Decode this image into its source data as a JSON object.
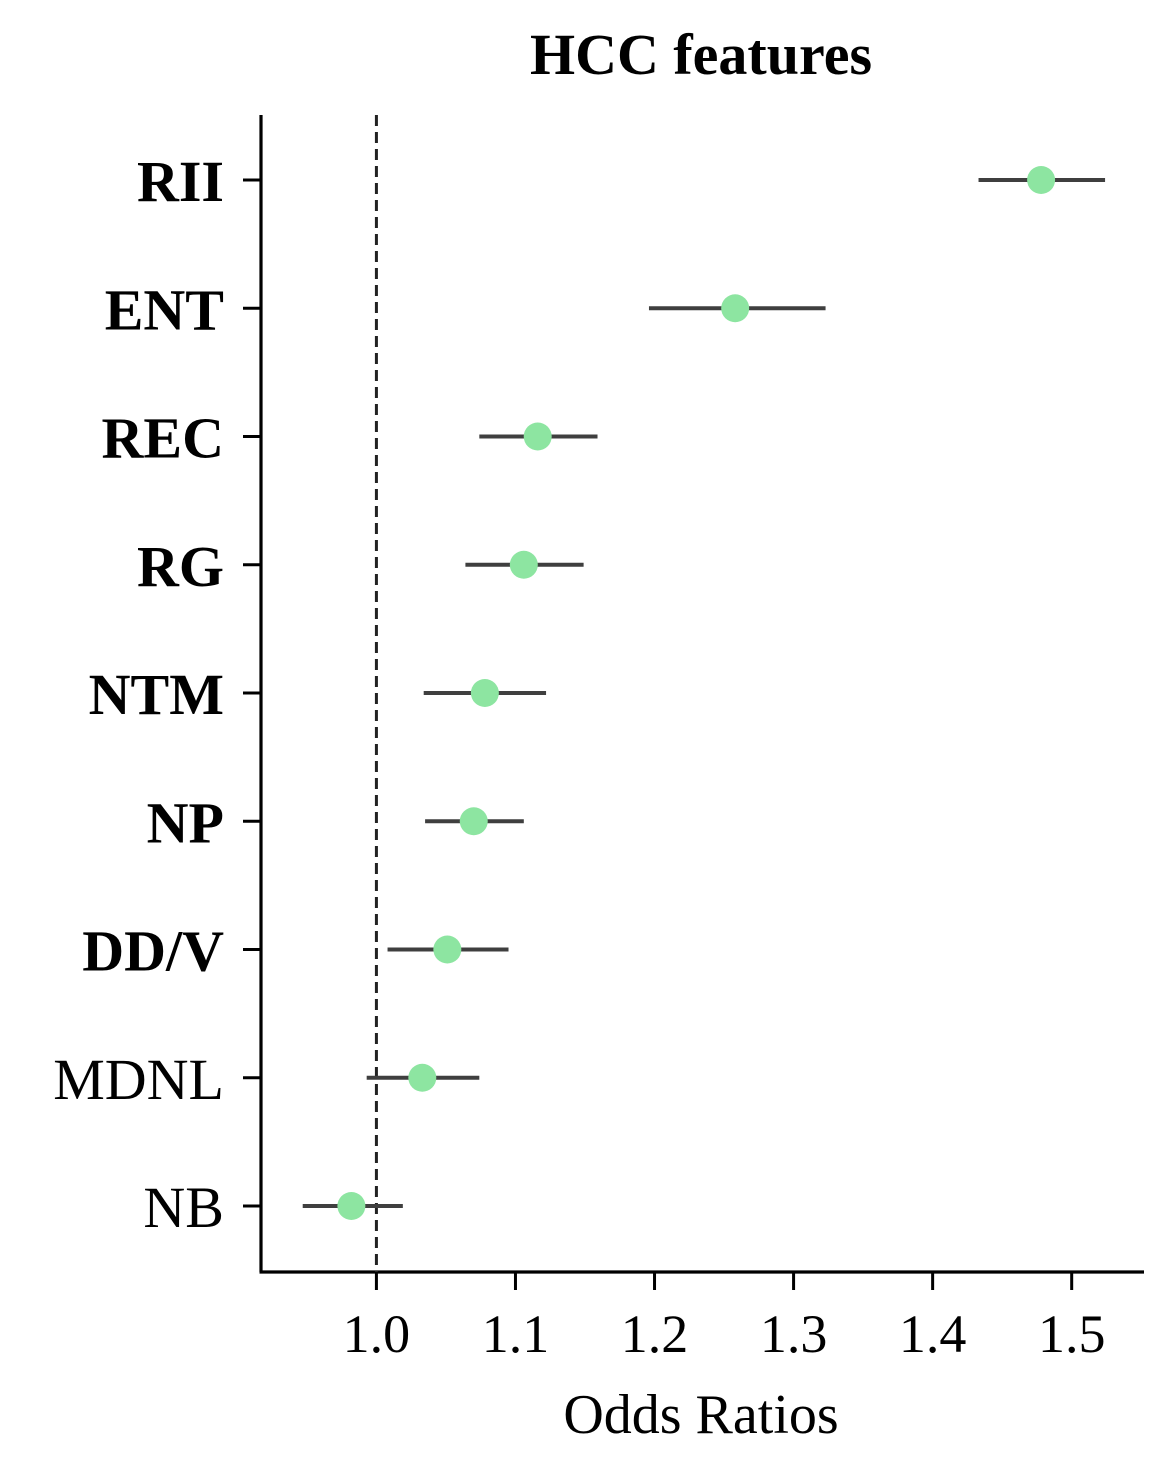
{
  "chart_data": {
    "type": "scatter",
    "title": "HCC features",
    "xlabel": "Odds Ratios",
    "ylabel": "",
    "xlim": [
      0.917,
      1.552
    ],
    "xticks": [
      "1.0",
      "1.1",
      "1.2",
      "1.3",
      "1.4",
      "1.5"
    ],
    "reference_line": 1.0,
    "point_color": "#8de5a1",
    "errorbar_color": "#3f3f3f",
    "grid": false,
    "categories": [
      "RII",
      "ENT",
      "REC",
      "RG",
      "NTM",
      "NP",
      "DD/V",
      "MDNL",
      "NB"
    ],
    "bold": [
      true,
      true,
      true,
      true,
      true,
      true,
      true,
      false,
      false
    ],
    "series": [
      {
        "values": [
          1.478,
          1.258,
          1.116,
          1.106,
          1.078,
          1.07,
          1.051,
          1.033,
          0.982
        ],
        "ci_low": [
          1.433,
          1.196,
          1.074,
          1.064,
          1.034,
          1.035,
          1.008,
          0.993,
          0.947
        ],
        "ci_high": [
          1.524,
          1.323,
          1.159,
          1.149,
          1.122,
          1.106,
          1.095,
          1.074,
          1.019
        ]
      }
    ]
  }
}
